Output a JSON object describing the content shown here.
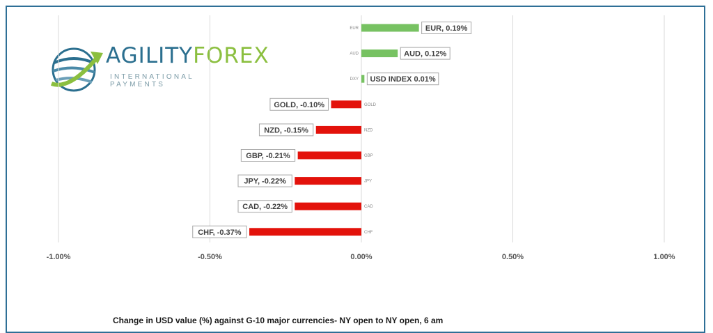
{
  "chart_data": {
    "type": "bar",
    "orientation": "horizontal",
    "categories": [
      "EUR",
      "AUD",
      "DXY",
      "GOLD",
      "NZD",
      "GBP",
      "JPY",
      "CAD",
      "CHF"
    ],
    "values": [
      0.19,
      0.12,
      0.01,
      -0.1,
      -0.15,
      -0.21,
      -0.22,
      -0.22,
      -0.37
    ],
    "data_labels": [
      "EUR, 0.19%",
      "AUD, 0.12%",
      "USD INDEX 0.01%",
      "GOLD, -0.10%",
      "NZD, -0.15%",
      "GBP, -0.21%",
      "JPY, -0.22%",
      "CAD, -0.22%",
      "CHF, -0.37%"
    ],
    "xlim": [
      -1.0,
      1.0
    ],
    "x_ticks": [
      -1.0,
      -0.5,
      0.0,
      0.5,
      1.0
    ],
    "x_tick_labels": [
      "-1.00%",
      "-0.50%",
      "0.00%",
      "0.50%",
      "1.00%"
    ],
    "grid": "vertical",
    "positive_color": "#77c262",
    "negative_color": "#e3120b"
  },
  "logo": {
    "text_part1": "AGILITY",
    "text_part2": "FOREX",
    "subtitle": "INTERNATIONAL PAYMENTS"
  },
  "caption": "Change in  USD value (%)  against  G-10 major currencies- NY open to NY open, 6 am"
}
